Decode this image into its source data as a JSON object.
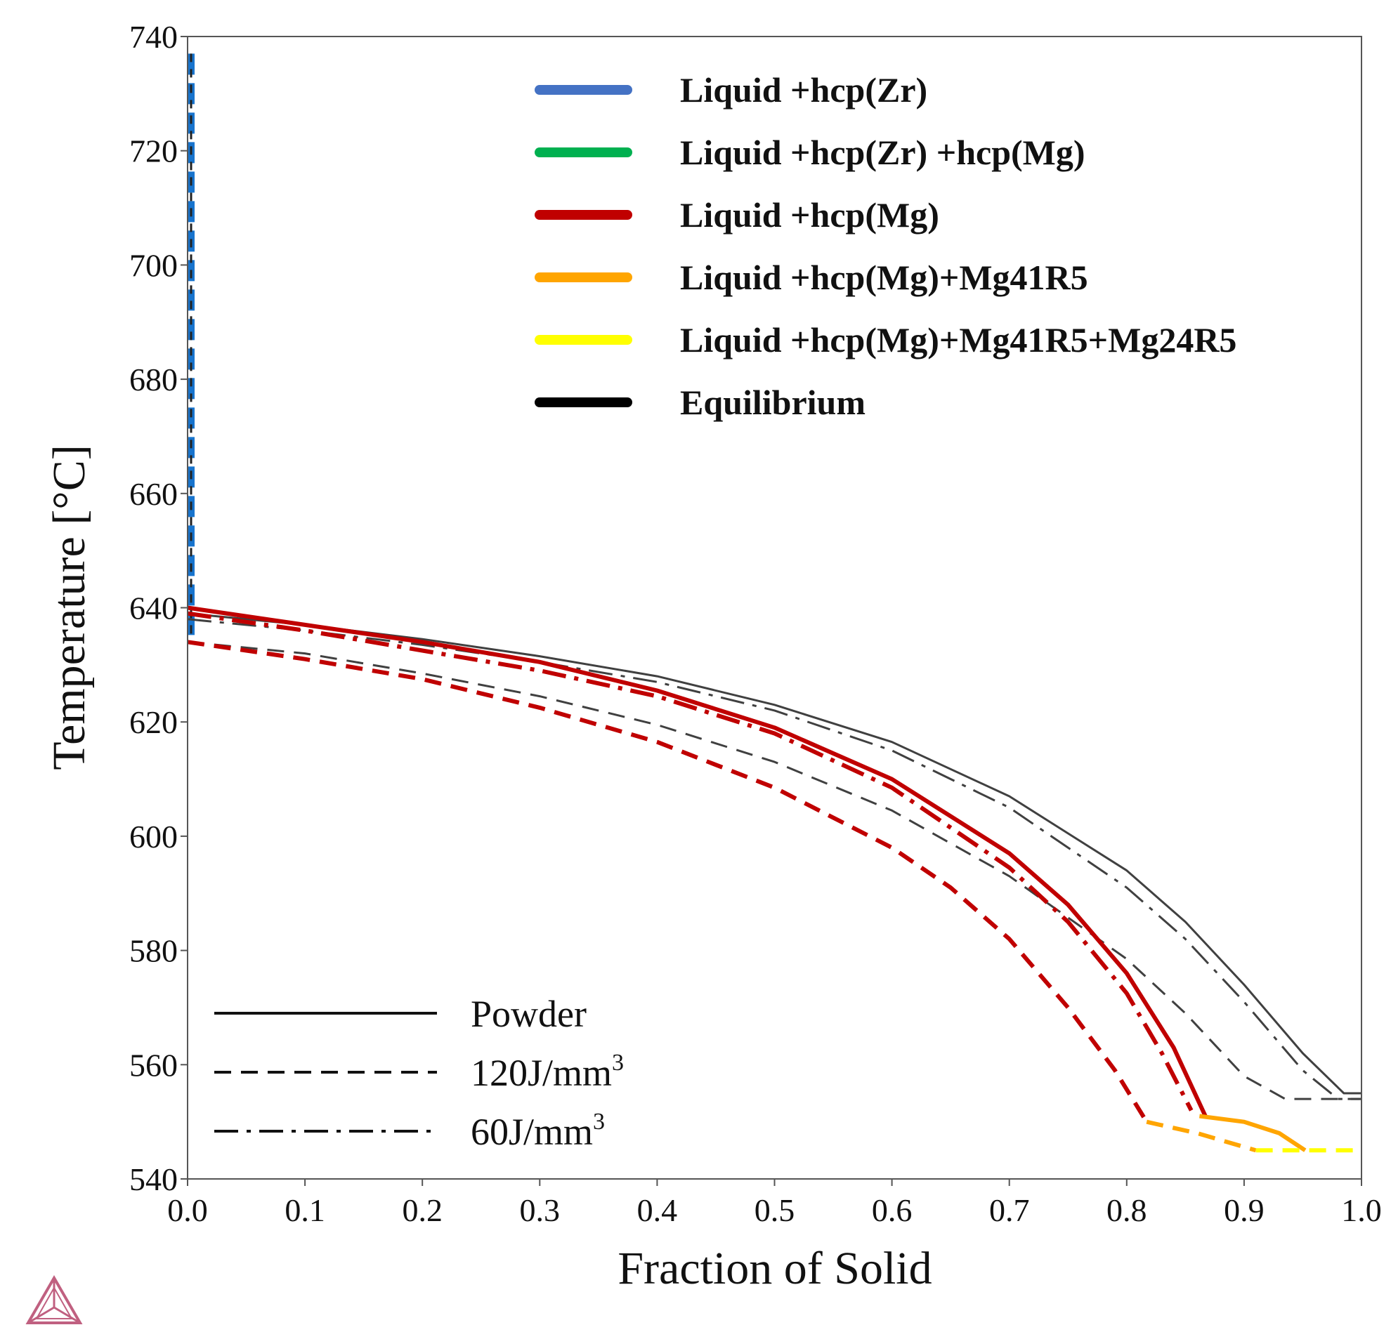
{
  "chart_data": {
    "type": "line",
    "title": "",
    "xlabel": "Fraction of Solid",
    "ylabel": "Temperature [°C]",
    "xlim": [
      0.0,
      1.0
    ],
    "ylim": [
      540,
      740
    ],
    "x_ticks": [
      "0.0",
      "0.1",
      "0.2",
      "0.3",
      "0.4",
      "0.5",
      "0.6",
      "0.7",
      "0.8",
      "0.9",
      "1.0"
    ],
    "y_ticks": [
      "540",
      "560",
      "580",
      "600",
      "620",
      "640",
      "660",
      "680",
      "700",
      "720",
      "740"
    ],
    "grid": false,
    "phase_legend": {
      "placement": "top-right",
      "entries": [
        {
          "label": "Liquid +hcp(Zr)",
          "color": "#4472C4"
        },
        {
          "label": "Liquid +hcp(Zr) +hcp(Mg)",
          "color": "#00B050"
        },
        {
          "label": "Liquid +hcp(Mg)",
          "color": "#C00000"
        },
        {
          "label": "Liquid +hcp(Mg)+Mg41R5",
          "color": "#FFA500"
        },
        {
          "label": "Liquid +hcp(Mg)+Mg41R5+Mg24R5",
          "color": "#FFFF00"
        },
        {
          "label": "Equilibrium",
          "color": "#000000"
        }
      ]
    },
    "style_legend": {
      "placement": "bottom-left",
      "entries": [
        {
          "label": "Powder",
          "dash": "solid"
        },
        {
          "label": "120J/mm",
          "superscript": "3",
          "dash": "dashed"
        },
        {
          "label": "60J/mm",
          "superscript": "3",
          "dash": "dashdot"
        }
      ]
    },
    "series": [
      {
        "name": "Liquid +hcp(Zr) (all conditions)",
        "color": "#1874CD",
        "dash": "dashed",
        "x": [
          0.003,
          0.003
        ],
        "y": [
          737,
          635
        ]
      },
      {
        "name": "Equilibrium - Powder",
        "color": "#404040",
        "dash": "solid",
        "x": [
          0.0,
          0.1,
          0.2,
          0.3,
          0.4,
          0.5,
          0.6,
          0.7,
          0.8,
          0.85,
          0.9,
          0.95,
          0.985,
          1.0
        ],
        "y": [
          639,
          637,
          634.5,
          631.5,
          628,
          623,
          616.5,
          607,
          594,
          585,
          574,
          562,
          555,
          555
        ]
      },
      {
        "name": "Equilibrium - 120J/mm3",
        "color": "#404040",
        "dash": "dashed",
        "x": [
          0.0,
          0.1,
          0.2,
          0.3,
          0.4,
          0.5,
          0.6,
          0.7,
          0.8,
          0.85,
          0.9,
          0.935,
          1.0
        ],
        "y": [
          634,
          632,
          628.5,
          624.5,
          619.5,
          613,
          604.5,
          593,
          578.5,
          569,
          558,
          554,
          554
        ]
      },
      {
        "name": "Equilibrium - 60J/mm3",
        "color": "#404040",
        "dash": "dashdot",
        "x": [
          0.0,
          0.1,
          0.2,
          0.3,
          0.4,
          0.5,
          0.6,
          0.7,
          0.8,
          0.85,
          0.9,
          0.95,
          0.98,
          1.0
        ],
        "y": [
          638,
          636,
          633.5,
          630.5,
          627,
          622,
          615,
          605,
          591,
          582,
          571,
          559,
          554,
          554
        ]
      },
      {
        "name": "Liquid +hcp(Mg) - Powder",
        "color": "#C00000",
        "dash": "solid",
        "x": [
          0.0,
          0.1,
          0.2,
          0.3,
          0.4,
          0.5,
          0.6,
          0.7,
          0.75,
          0.8,
          0.84,
          0.867
        ],
        "y": [
          640,
          637,
          634,
          630.5,
          625.5,
          619,
          610,
          597,
          588,
          576,
          563,
          551
        ]
      },
      {
        "name": "Liquid +hcp(Mg) - 120J/mm3",
        "color": "#C00000",
        "dash": "dashed",
        "x": [
          0.0,
          0.1,
          0.2,
          0.3,
          0.4,
          0.5,
          0.6,
          0.65,
          0.7,
          0.75,
          0.79,
          0.817
        ],
        "y": [
          634,
          631,
          627.5,
          622.5,
          616.5,
          608.5,
          598,
          591,
          582,
          570,
          559,
          550
        ]
      },
      {
        "name": "Liquid +hcp(Mg) - 60J/mm3",
        "color": "#C00000",
        "dash": "dashdot",
        "x": [
          0.0,
          0.1,
          0.2,
          0.3,
          0.4,
          0.5,
          0.6,
          0.7,
          0.75,
          0.8,
          0.83,
          0.855
        ],
        "y": [
          639,
          636,
          632.5,
          629,
          624.5,
          618,
          608.5,
          594.5,
          585,
          572.5,
          562,
          552
        ]
      },
      {
        "name": "Liquid +hcp(Mg)+Mg41R5 - Powder",
        "color": "#FFA500",
        "dash": "solid",
        "x": [
          0.862,
          0.9,
          0.93,
          0.952
        ],
        "y": [
          551,
          550,
          548,
          545
        ]
      },
      {
        "name": "Liquid +hcp(Mg)+Mg41R5 - 120J/mm3",
        "color": "#FFA500",
        "dash": "dashed",
        "x": [
          0.817,
          0.86,
          0.91
        ],
        "y": [
          550,
          548,
          545
        ]
      },
      {
        "name": "Liquid +hcp(Mg)+Mg41R5+Mg24R5 - Powder",
        "color": "#FFFF00",
        "dash": "dashed",
        "x": [
          0.91,
          1.0
        ],
        "y": [
          545,
          545
        ]
      }
    ]
  }
}
